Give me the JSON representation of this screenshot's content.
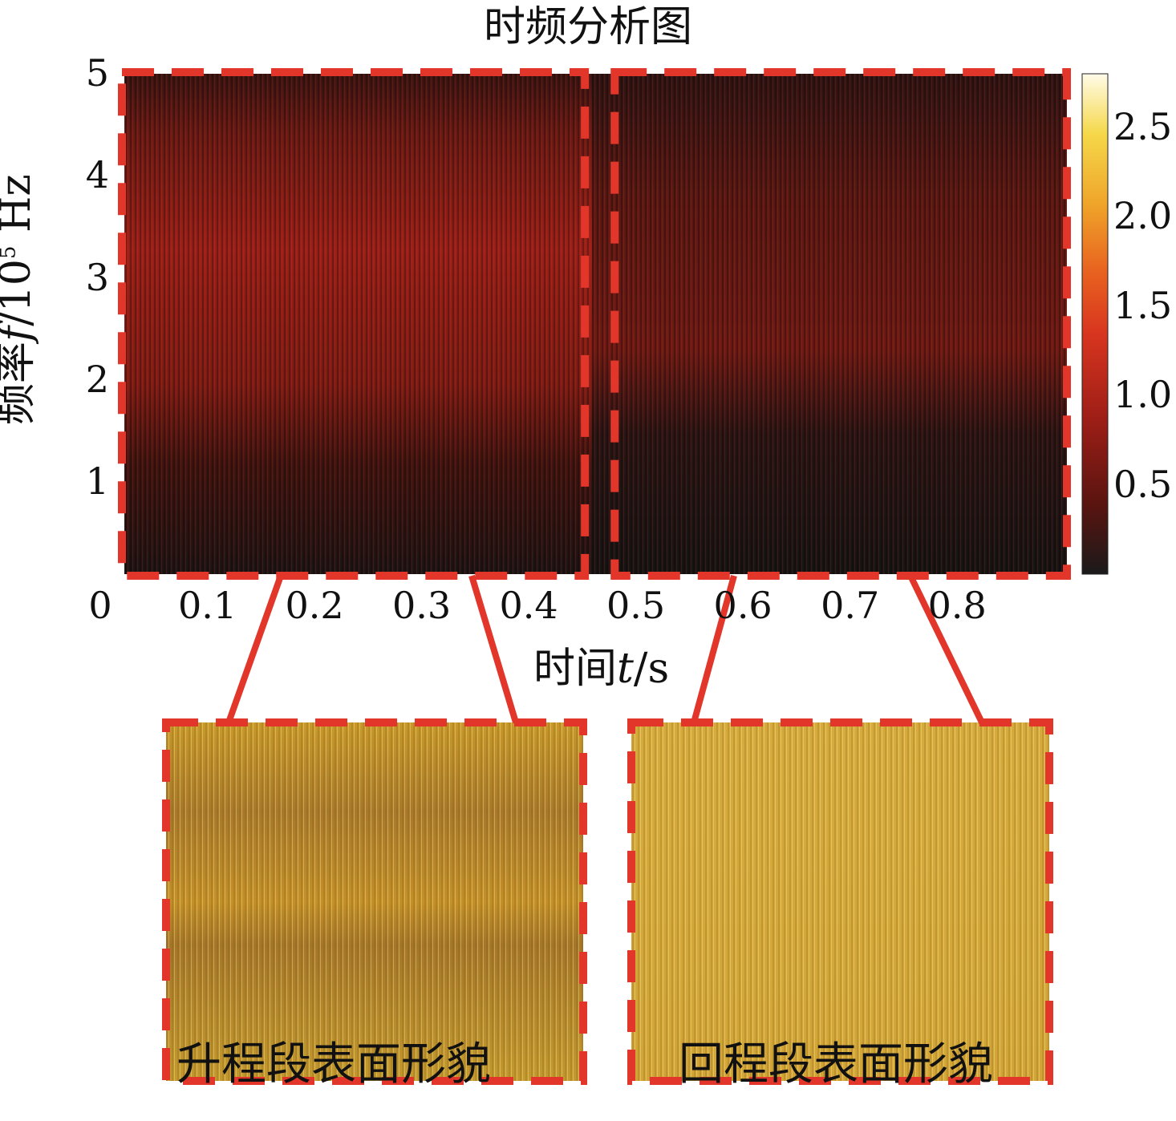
{
  "chart_data": {
    "type": "heatmap",
    "title": "时频分析图",
    "xlabel": {
      "prefix": "时间",
      "var": "t",
      "unit": "/s"
    },
    "ylabel": {
      "prefix": "频率",
      "var": "f",
      "unit": "/10",
      "exp": "5",
      "suffix": " Hz"
    },
    "x_ticks": [
      "0",
      "0.1",
      "0.2",
      "0.3",
      "0.4",
      "0.5",
      "0.6",
      "0.7",
      "0.8"
    ],
    "x_tick_values": [
      0,
      0.1,
      0.2,
      0.3,
      0.4,
      0.5,
      0.6,
      0.7,
      0.8
    ],
    "xlim": [
      0,
      0.88
    ],
    "y_ticks": [
      "1",
      "2",
      "3",
      "4",
      "5"
    ],
    "y_tick_values": [
      1,
      2,
      3,
      4,
      5
    ],
    "ylim": [
      0.1,
      5
    ],
    "colorbar": {
      "ticks": [
        "0.5",
        "1.0",
        "1.5",
        "2.0",
        "2.5"
      ],
      "tick_values": [
        0.5,
        1.0,
        1.5,
        2.0,
        2.5
      ],
      "range": [
        0,
        2.8
      ],
      "colormap": [
        "#1a1a1a",
        "#5a1410",
        "#a11f17",
        "#d8351f",
        "#e8601f",
        "#efa52a",
        "#f5d84a",
        "#fffbe8"
      ]
    },
    "regions": [
      {
        "label": "升程段表面形貌",
        "t_range": [
          0,
          0.43
        ]
      },
      {
        "label": "回程段表面形貌",
        "t_range": [
          0.46,
          0.88
        ]
      }
    ],
    "accent_color": "#e2362b"
  }
}
